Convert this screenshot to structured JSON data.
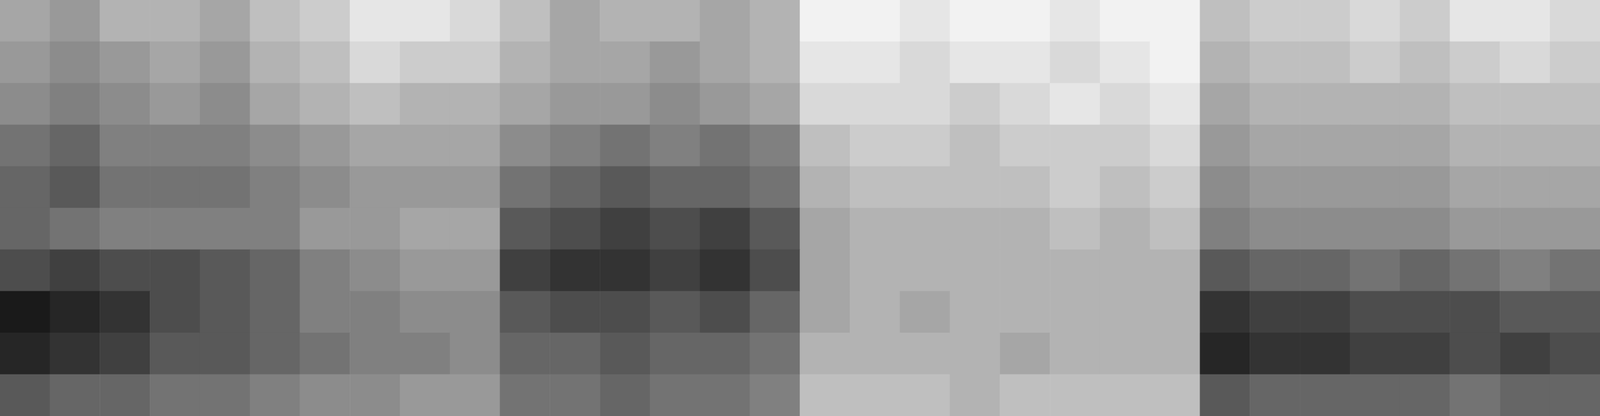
{
  "chart_data": {
    "type": "heatmap",
    "tick_labels": false,
    "zlim": [
      0,
      1
    ],
    "cells": [
      [
        0.35,
        0.4,
        0.3,
        0.3,
        0.35,
        0.25,
        0.2,
        0.1,
        0.1,
        0.15,
        0.25,
        0.35,
        0.3,
        0.3,
        0.35,
        0.3,
        0.05,
        0.05,
        0.1,
        0.05,
        0.05,
        0.1,
        0.05,
        0.05,
        0.25,
        0.2,
        0.2,
        0.15,
        0.2,
        0.1,
        0.1,
        0.15
      ],
      [
        0.4,
        0.45,
        0.4,
        0.35,
        0.4,
        0.3,
        0.25,
        0.15,
        0.2,
        0.2,
        0.3,
        0.35,
        0.35,
        0.4,
        0.35,
        0.3,
        0.1,
        0.1,
        0.15,
        0.1,
        0.1,
        0.15,
        0.1,
        0.05,
        0.3,
        0.25,
        0.25,
        0.2,
        0.25,
        0.2,
        0.15,
        0.2
      ],
      [
        0.45,
        0.5,
        0.45,
        0.4,
        0.45,
        0.35,
        0.3,
        0.25,
        0.3,
        0.3,
        0.35,
        0.4,
        0.4,
        0.45,
        0.4,
        0.35,
        0.15,
        0.15,
        0.15,
        0.2,
        0.15,
        0.1,
        0.15,
        0.1,
        0.35,
        0.3,
        0.3,
        0.3,
        0.3,
        0.25,
        0.25,
        0.25
      ],
      [
        0.55,
        0.6,
        0.5,
        0.5,
        0.5,
        0.45,
        0.4,
        0.35,
        0.35,
        0.35,
        0.45,
        0.5,
        0.55,
        0.5,
        0.55,
        0.5,
        0.25,
        0.2,
        0.2,
        0.25,
        0.2,
        0.2,
        0.2,
        0.15,
        0.4,
        0.35,
        0.35,
        0.35,
        0.35,
        0.3,
        0.3,
        0.3
      ],
      [
        0.6,
        0.65,
        0.55,
        0.55,
        0.55,
        0.5,
        0.45,
        0.4,
        0.4,
        0.4,
        0.55,
        0.6,
        0.65,
        0.6,
        0.6,
        0.55,
        0.3,
        0.25,
        0.25,
        0.25,
        0.25,
        0.2,
        0.25,
        0.2,
        0.45,
        0.4,
        0.4,
        0.4,
        0.4,
        0.35,
        0.35,
        0.35
      ],
      [
        0.6,
        0.55,
        0.5,
        0.5,
        0.5,
        0.5,
        0.4,
        0.4,
        0.35,
        0.35,
        0.65,
        0.7,
        0.75,
        0.7,
        0.75,
        0.65,
        0.35,
        0.3,
        0.3,
        0.3,
        0.3,
        0.25,
        0.3,
        0.25,
        0.5,
        0.45,
        0.45,
        0.45,
        0.45,
        0.4,
        0.4,
        0.4
      ],
      [
        0.7,
        0.75,
        0.7,
        0.7,
        0.65,
        0.6,
        0.5,
        0.45,
        0.4,
        0.4,
        0.75,
        0.8,
        0.8,
        0.75,
        0.8,
        0.7,
        0.35,
        0.3,
        0.3,
        0.3,
        0.3,
        0.3,
        0.3,
        0.3,
        0.65,
        0.6,
        0.6,
        0.55,
        0.6,
        0.55,
        0.5,
        0.55
      ],
      [
        0.9,
        0.85,
        0.8,
        0.7,
        0.65,
        0.6,
        0.5,
        0.5,
        0.45,
        0.45,
        0.65,
        0.7,
        0.7,
        0.65,
        0.7,
        0.6,
        0.35,
        0.3,
        0.35,
        0.3,
        0.3,
        0.3,
        0.3,
        0.3,
        0.8,
        0.75,
        0.75,
        0.7,
        0.7,
        0.7,
        0.65,
        0.65
      ],
      [
        0.85,
        0.8,
        0.75,
        0.65,
        0.65,
        0.6,
        0.55,
        0.5,
        0.5,
        0.45,
        0.6,
        0.6,
        0.65,
        0.6,
        0.6,
        0.55,
        0.3,
        0.3,
        0.3,
        0.3,
        0.35,
        0.3,
        0.3,
        0.3,
        0.85,
        0.8,
        0.8,
        0.75,
        0.75,
        0.7,
        0.75,
        0.7
      ],
      [
        0.65,
        0.6,
        0.6,
        0.55,
        0.55,
        0.5,
        0.45,
        0.45,
        0.4,
        0.4,
        0.55,
        0.55,
        0.6,
        0.55,
        0.55,
        0.5,
        0.25,
        0.25,
        0.25,
        0.3,
        0.25,
        0.25,
        0.25,
        0.25,
        0.65,
        0.6,
        0.6,
        0.6,
        0.6,
        0.55,
        0.6,
        0.6
      ]
    ]
  }
}
